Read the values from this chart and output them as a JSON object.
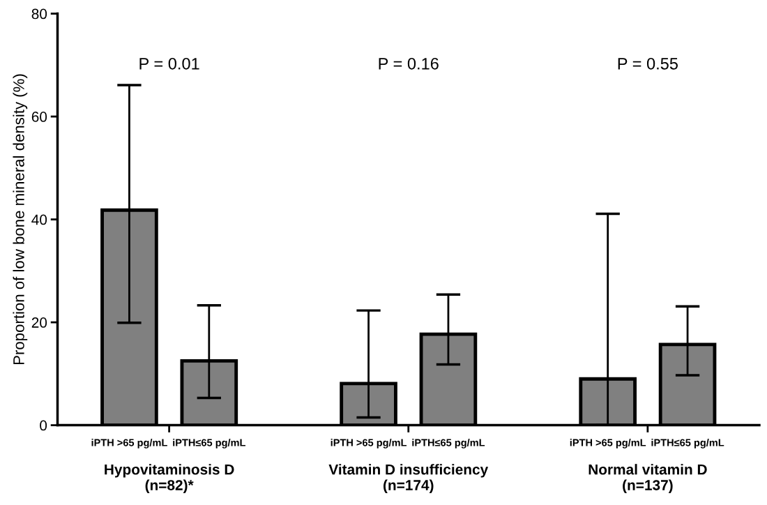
{
  "chart_data": {
    "type": "bar",
    "ylabel": "Proportion of low bone mineral density (%)",
    "categories": [
      "iPTH >65 pg/mL",
      "iPTH≤65 pg/mL",
      null,
      "iPTH >65 pg/mL",
      "iPTH≤65 pg/mL",
      null,
      "iPTH >65 pg/mL",
      "iPTH≤65 pg/mL"
    ],
    "values": [
      41.8,
      12.5,
      null,
      8.1,
      17.7,
      null,
      9.0,
      15.7
    ],
    "errors": [
      [
        19.9,
        66.1
      ],
      [
        5.3,
        23.3
      ],
      null,
      [
        1.5,
        22.3
      ],
      [
        11.8,
        25.4
      ],
      null,
      [
        0,
        41.1
      ],
      [
        9.7,
        23.1
      ]
    ],
    "color": "#808080",
    "ylim": [
      0,
      80
    ],
    "yticks": [
      0,
      20,
      40,
      60,
      80
    ],
    "grid": false,
    "annotations": [
      "P = 0.01",
      "P = 0.16",
      "P = 0.55",
      "Hypovitaminosis D\n(n=82)*",
      "Vitamin D insufficiency\n(n=174)",
      "Normal vitamin D\n(n=137)"
    ]
  }
}
